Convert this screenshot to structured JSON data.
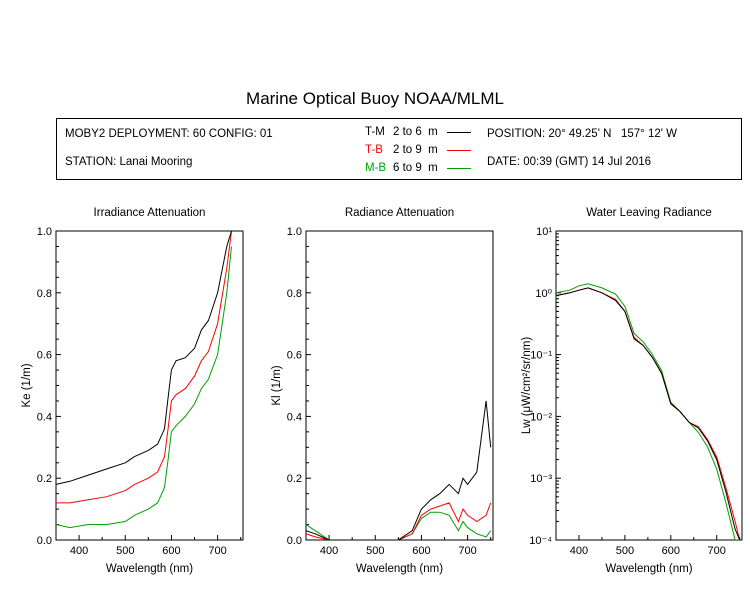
{
  "title": "Marine Optical Buoy NOAA/MLML",
  "info": {
    "deployment": "MOBY2 DEPLOYMENT: 60 CONFIG: 01",
    "station": "STATION: Lanai Mooring",
    "position": "POSITION: 20° 49.25' N   157° 12' W",
    "date": "DATE: 00:39 (GMT) 14 Jul 2016"
  },
  "legend": [
    {
      "code": "T-M",
      "range": "2 to 6  m",
      "color": "#000000"
    },
    {
      "code": "T-B",
      "range": "2 to 9  m",
      "color": "#ff0000"
    },
    {
      "code": "M-B",
      "range": "6 to 9  m",
      "color": "#00a000"
    }
  ],
  "chart_data": [
    {
      "type": "line",
      "title": "Irradiance Attenuation",
      "xlabel": "Wavelength (nm)",
      "ylabel": "Ke  (1/m)",
      "xlim": [
        350,
        755
      ],
      "ylim": [
        0,
        1.0
      ],
      "xticks": [
        400,
        500,
        600,
        700
      ],
      "yticks": [
        0,
        0.2,
        0.4,
        0.6,
        0.8,
        1.0
      ],
      "ytick_labels": [
        "0.0",
        "0.2",
        "0.4",
        "0.6",
        "0.8",
        "1.0"
      ],
      "x": [
        350,
        380,
        420,
        460,
        500,
        520,
        550,
        570,
        585,
        592,
        600,
        610,
        630,
        650,
        665,
        680,
        700,
        720,
        730
      ],
      "series": [
        {
          "name": "T-M",
          "color": "#000000",
          "values": [
            0.18,
            0.19,
            0.21,
            0.23,
            0.25,
            0.27,
            0.29,
            0.31,
            0.36,
            0.45,
            0.55,
            0.58,
            0.59,
            0.62,
            0.68,
            0.71,
            0.8,
            0.95,
            1.0
          ]
        },
        {
          "name": "T-B",
          "color": "#ff0000",
          "values": [
            0.12,
            0.12,
            0.13,
            0.14,
            0.16,
            0.18,
            0.2,
            0.22,
            0.27,
            0.35,
            0.45,
            0.47,
            0.49,
            0.53,
            0.58,
            0.61,
            0.7,
            0.88,
            1.0
          ]
        },
        {
          "name": "M-B",
          "color": "#00a000",
          "values": [
            0.05,
            0.04,
            0.05,
            0.05,
            0.06,
            0.08,
            0.1,
            0.12,
            0.17,
            0.25,
            0.35,
            0.37,
            0.4,
            0.44,
            0.49,
            0.52,
            0.6,
            0.8,
            0.95
          ]
        }
      ]
    },
    {
      "type": "line",
      "title": "Radiance Attenuation",
      "xlabel": "Wavelength (nm)",
      "ylabel": "Kl  (1/m)",
      "xlim": [
        350,
        755
      ],
      "ylim": [
        0,
        1.0
      ],
      "xticks": [
        400,
        500,
        600,
        700
      ],
      "yticks": [
        0,
        0.2,
        0.4,
        0.6,
        0.8,
        1.0
      ],
      "ytick_labels": [
        "0.0",
        "0.2",
        "0.4",
        "0.6",
        "0.8",
        "1.0"
      ],
      "x": [
        350,
        370,
        400,
        450,
        500,
        550,
        580,
        600,
        620,
        640,
        660,
        680,
        690,
        700,
        720,
        740,
        750
      ],
      "series": [
        {
          "name": "T-M",
          "color": "#000000",
          "values": [
            0.03,
            0.02,
            0.0,
            0.0,
            0.0,
            0.0,
            0.03,
            0.1,
            0.13,
            0.15,
            0.18,
            0.15,
            0.2,
            0.18,
            0.22,
            0.45,
            0.3
          ]
        },
        {
          "name": "T-B",
          "color": "#ff0000",
          "values": [
            0.02,
            0.01,
            0.0,
            0.0,
            0.0,
            0.0,
            0.02,
            0.08,
            0.1,
            0.11,
            0.12,
            0.06,
            0.1,
            0.08,
            0.06,
            0.08,
            0.12
          ]
        },
        {
          "name": "M-B",
          "color": "#00a000",
          "values": [
            0.05,
            0.03,
            0.0,
            0.0,
            0.0,
            0.0,
            0.02,
            0.07,
            0.09,
            0.09,
            0.08,
            0.03,
            0.06,
            0.04,
            0.02,
            0.01,
            0.03
          ]
        }
      ]
    },
    {
      "type": "line",
      "title": "Water Leaving Radiance",
      "xlabel": "Wavelength (nm)",
      "ylabel": "Lw  (μW/cm²/sr/nm)",
      "xlim": [
        350,
        755
      ],
      "ylim": [
        0.0001,
        10
      ],
      "yscale": "log",
      "xticks": [
        400,
        500,
        600,
        700
      ],
      "yticks": [
        0.0001,
        0.001,
        0.01,
        0.1,
        1,
        10
      ],
      "ytick_labels": [
        "10⁻⁴",
        "10⁻³",
        "10⁻²",
        "10⁻¹",
        "10⁰",
        "10¹"
      ],
      "x": [
        350,
        380,
        400,
        420,
        450,
        480,
        500,
        520,
        540,
        560,
        580,
        600,
        620,
        640,
        660,
        680,
        700,
        720,
        740,
        750
      ],
      "series": [
        {
          "name": "T-M",
          "color": "#000000",
          "values": [
            0.9,
            1.0,
            1.1,
            1.2,
            1.0,
            0.75,
            0.5,
            0.18,
            0.14,
            0.09,
            0.05,
            0.016,
            0.012,
            0.008,
            0.0065,
            0.004,
            0.002,
            0.0006,
            0.00015,
            0.0001
          ]
        },
        {
          "name": "T-B",
          "color": "#ff0000",
          "values": [
            0.9,
            1.0,
            1.1,
            1.2,
            1.0,
            0.78,
            0.5,
            0.19,
            0.14,
            0.09,
            0.05,
            0.016,
            0.012,
            0.008,
            0.0068,
            0.0042,
            0.0022,
            0.0007,
            0.0002,
            0.0001
          ]
        },
        {
          "name": "M-B",
          "color": "#00a000",
          "values": [
            1.0,
            1.1,
            1.3,
            1.4,
            1.2,
            0.95,
            0.6,
            0.22,
            0.16,
            0.1,
            0.055,
            0.017,
            0.012,
            0.008,
            0.0055,
            0.0032,
            0.0014,
            0.0004,
            0.0001,
            0.0001
          ]
        }
      ]
    }
  ]
}
